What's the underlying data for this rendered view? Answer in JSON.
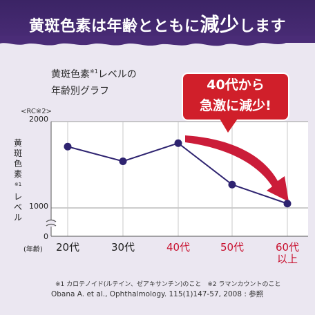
{
  "banner": {
    "title_prefix": "黄斑色素は年齢とともに",
    "title_emph": "減少",
    "title_suffix": "します"
  },
  "subtitle": {
    "line1_a": "黄斑色素",
    "line1_sup": "※1",
    "line1_b": "レベルの",
    "line2": "年齢別グラフ"
  },
  "callout": {
    "line1": "40代から",
    "line2": "急激に減少!"
  },
  "axis": {
    "unit_label": "<RC※2>",
    "ylabel_top": "黄斑色素",
    "ylabel_sup": "※1",
    "ylabel_bottom": "レベル",
    "age_unit": "(年齢)"
  },
  "footnote": "※1 カロテノイド(ルテイン、ゼアキサンチン)のこと　※2 ラマンカウントのこと",
  "reference": "Obana A. et al., Ophthalmology. 115(1)147-57, 2008 : 参照",
  "colors": {
    "banner": "#3b2465",
    "line": "#2e2370",
    "arrow": "#c8102e",
    "highlight_text": "#c8102e",
    "grid": "#9a9a9a"
  },
  "chart_data": {
    "type": "line",
    "categories": [
      "20代",
      "30代",
      "40代",
      "50代",
      "60代"
    ],
    "category_suffix": [
      "",
      "",
      "",
      "",
      "以上"
    ],
    "highlight_categories": [
      2,
      3,
      4
    ],
    "series": [
      {
        "values": [
          1710,
          1540,
          1750,
          1270,
          1050
        ]
      }
    ],
    "yticks": [
      "2000",
      "1000",
      "0"
    ],
    "ylim": [
      850,
      2000
    ],
    "axis_break": true,
    "grid": true
  }
}
